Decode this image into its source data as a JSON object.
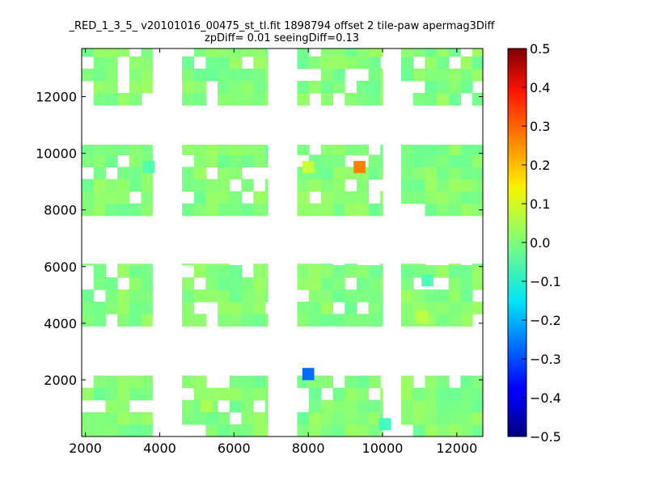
{
  "chart_data": {
    "type": "heatmap",
    "title_line1": "_RED_1_3_5_ v20101016_00475_st_tl.fit 1898794 offset 2 tile-paw apermag3Diff",
    "title_line2": "zpDiff= 0.01 seeingDiff=0.13",
    "xlabel": "",
    "ylabel": "",
    "xlim": [
      1900,
      12700
    ],
    "ylim": [
      0,
      13700
    ],
    "x_ticks": [
      2000,
      4000,
      6000,
      8000,
      10000,
      12000
    ],
    "y_ticks": [
      2000,
      4000,
      6000,
      8000,
      10000,
      12000
    ],
    "colorbar": {
      "colormap": "jet",
      "range": [
        -0.5,
        0.5
      ],
      "ticks": [
        0.5,
        0.4,
        0.3,
        0.2,
        0.1,
        0.0,
        -0.1,
        -0.2,
        -0.3,
        -0.4,
        -0.5
      ],
      "tick_labels": [
        "0.5",
        "0.4",
        "0.3",
        "0.2",
        "0.1",
        "0.0",
        "−0.1",
        "−0.2",
        "−0.3",
        "−0.4",
        "−0.5"
      ]
    },
    "cell_size": [
      320,
      430
    ],
    "blocks": [
      {
        "x0": 1900,
        "x1": 3800,
        "y0": 0,
        "y1": 2150
      },
      {
        "x0": 4600,
        "x1": 6900,
        "y0": 0,
        "y1": 2150
      },
      {
        "x0": 7700,
        "x1": 10000,
        "y0": 0,
        "y1": 2150
      },
      {
        "x0": 10500,
        "x1": 12700,
        "y0": 0,
        "y1": 2150
      },
      {
        "x0": 1900,
        "x1": 3800,
        "y0": 3900,
        "y1": 6100
      },
      {
        "x0": 4600,
        "x1": 6900,
        "y0": 3900,
        "y1": 6100
      },
      {
        "x0": 7700,
        "x1": 10000,
        "y0": 3900,
        "y1": 6100
      },
      {
        "x0": 10500,
        "x1": 12700,
        "y0": 3900,
        "y1": 6100
      },
      {
        "x0": 1900,
        "x1": 3800,
        "y0": 7800,
        "y1": 10300
      },
      {
        "x0": 4600,
        "x1": 6900,
        "y0": 7800,
        "y1": 10300
      },
      {
        "x0": 7700,
        "x1": 10000,
        "y0": 7800,
        "y1": 10300
      },
      {
        "x0": 10500,
        "x1": 12700,
        "y0": 7800,
        "y1": 10300
      },
      {
        "x0": 1900,
        "x1": 3800,
        "y0": 11700,
        "y1": 13700
      },
      {
        "x0": 4600,
        "x1": 6900,
        "y0": 11700,
        "y1": 13700
      },
      {
        "x0": 7700,
        "x1": 10000,
        "y0": 11700,
        "y1": 13700
      },
      {
        "x0": 10500,
        "x1": 12700,
        "y0": 11700,
        "y1": 13700
      }
    ],
    "highlights": [
      {
        "x": 7840,
        "y": 1990,
        "value": -0.27
      },
      {
        "x": 9220,
        "y": 9300,
        "value": 0.25
      },
      {
        "x": 7840,
        "y": 9300,
        "value": 0.07
      },
      {
        "x": 10900,
        "y": 4010,
        "value": 0.06
      },
      {
        "x": 5100,
        "y": 860,
        "value": 0.045
      },
      {
        "x": 9900,
        "y": 220,
        "value": -0.06
      },
      {
        "x": 3540,
        "y": 9300,
        "value": -0.045
      },
      {
        "x": 11050,
        "y": 5300,
        "value": -0.05
      }
    ]
  }
}
